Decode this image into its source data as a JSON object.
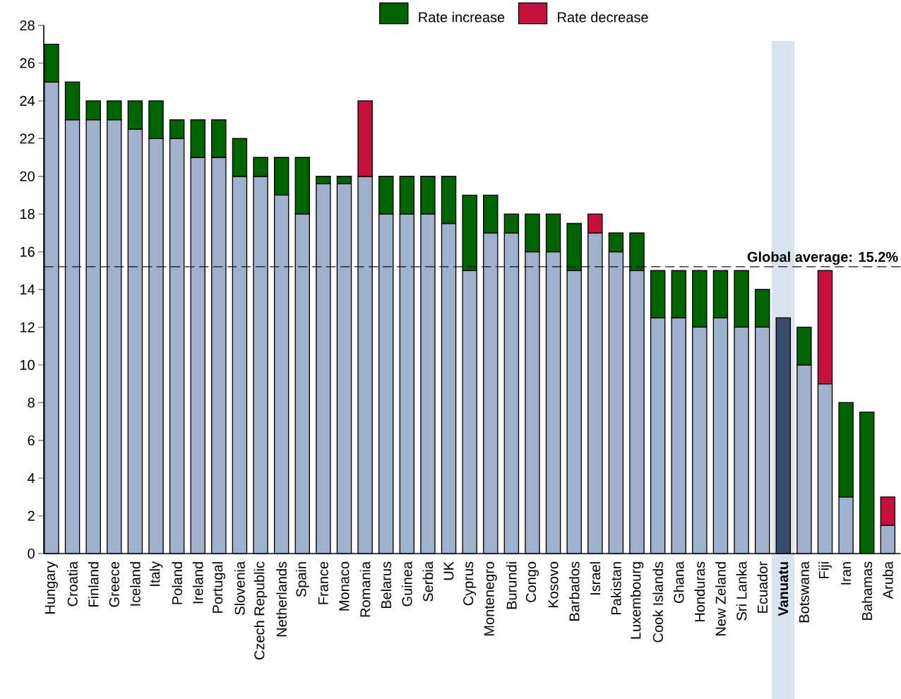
{
  "chart_data": {
    "type": "bar",
    "stacked": true,
    "categories": [
      "Hungary",
      "Croatia",
      "Finland",
      "Greece",
      "Iceland",
      "Italy",
      "Poland",
      "Ireland",
      "Portugal",
      "Slovenia",
      "Czech Republic",
      "Netherlands",
      "Spain",
      "France",
      "Monaco",
      "Romania",
      "Belarus",
      "Guinea",
      "Serbia",
      "UK",
      "Cyprus",
      "Montenegro",
      "Burundi",
      "Congo",
      "Kosovo",
      "Barbados",
      "Israel",
      "Pakistan",
      "Luxembourg",
      "Cook Islands",
      "Ghana",
      "Honduras",
      "New Zeland",
      "Sri Lanka",
      "Ecuador",
      "Vanuatu",
      "Botswana",
      "Fiji",
      "Iran",
      "Bahamas",
      "Aruba"
    ],
    "series": [
      {
        "colors": [
          "#a0b1ce",
          "#a0b1ce",
          "#a0b1ce",
          "#a0b1ce",
          "#a0b1ce",
          "#a0b1ce",
          "#a0b1ce",
          "#a0b1ce",
          "#a0b1ce",
          "#a0b1ce",
          "#a0b1ce",
          "#a0b1ce",
          "#a0b1ce",
          "#a0b1ce",
          "#a0b1ce",
          "#a0b1ce",
          "#a0b1ce",
          "#a0b1ce",
          "#a0b1ce",
          "#a0b1ce",
          "#a0b1ce",
          "#a0b1ce",
          "#a0b1ce",
          "#a0b1ce",
          "#a0b1ce",
          "#a0b1ce",
          "#a0b1ce",
          "#a0b1ce",
          "#a0b1ce",
          "#a0b1ce",
          "#a0b1ce",
          "#a0b1ce",
          "#a0b1ce",
          "#a0b1ce",
          "#a0b1ce",
          "#374c6c",
          "#a0b1ce",
          "#a0b1ce",
          "#a0b1ce",
          "#a0b1ce",
          "#a0b1ce"
        ],
        "values": [
          25,
          23,
          23,
          23,
          22.5,
          22,
          22,
          21,
          21,
          20,
          20,
          19,
          18,
          19.6,
          19.6,
          20,
          18,
          18,
          18,
          17.5,
          15,
          17,
          17,
          16,
          16,
          15,
          17,
          16,
          15,
          12.5,
          12.5,
          12,
          12.5,
          12,
          12,
          12.5,
          10,
          9,
          3,
          null,
          1.5
        ]
      },
      {
        "name": "Rate increase",
        "color": "#006400",
        "values": [
          2,
          2,
          1,
          1,
          1.5,
          2,
          1,
          2,
          2,
          2,
          1,
          2,
          3,
          0.4,
          0.4,
          null,
          2,
          2,
          2,
          2.5,
          4,
          2,
          1,
          2,
          2,
          2.5,
          null,
          1,
          2,
          2.5,
          2.5,
          3,
          2.5,
          3,
          2,
          null,
          2,
          null,
          5,
          7.5,
          null
        ]
      },
      {
        "name": "Rate decrease",
        "color": "#c8103c",
        "values": [
          null,
          null,
          null,
          null,
          null,
          null,
          null,
          null,
          null,
          null,
          null,
          null,
          null,
          null,
          null,
          4,
          null,
          null,
          null,
          null,
          null,
          null,
          null,
          null,
          null,
          null,
          1,
          null,
          null,
          null,
          null,
          null,
          null,
          null,
          null,
          null,
          null,
          6,
          null,
          null,
          1.5
        ]
      }
    ],
    "ylim": [
      0,
      28
    ],
    "yticks": [
      0,
      2,
      4,
      6,
      8,
      10,
      12,
      14,
      16,
      18,
      20,
      22,
      24,
      26,
      28
    ],
    "ref_lines": [
      {
        "axis": "y",
        "value": 15.2,
        "label": "Global average: 15.2%",
        "color": "#000000",
        "line_style": "dashed"
      }
    ],
    "bands": [
      {
        "axis": "x",
        "from": "Vanuatu",
        "to": "Vanuatu",
        "color": "#dae3f0"
      }
    ],
    "legend": "top",
    "grid": false
  }
}
